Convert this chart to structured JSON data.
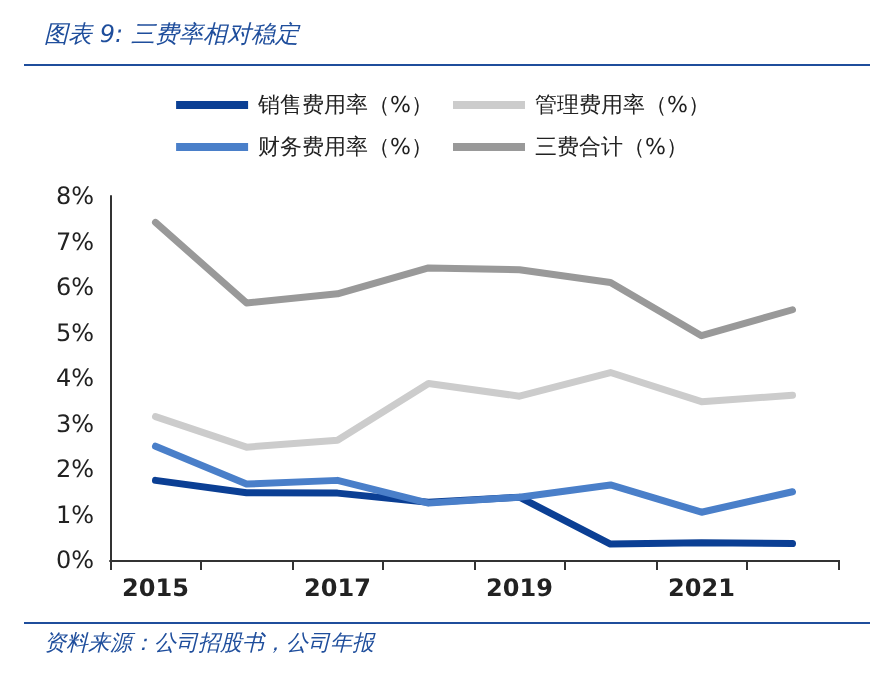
{
  "chart_data": {
    "type": "line",
    "title": "图表 9:  三费率相对稳定",
    "annotations": [
      "资料来源：公司招股书，公司年报"
    ],
    "categories": [
      "2015",
      null,
      "2017",
      null,
      "2019",
      null,
      "2021",
      null
    ],
    "series": [
      {
        "name": "销售费用率（%）",
        "color": "#0b3f94",
        "values": [
          1.75,
          1.48,
          1.47,
          1.27,
          1.38,
          0.35,
          0.38,
          0.36
        ]
      },
      {
        "name": "管理费用率（%）",
        "color": "#cccccc",
        "values": [
          3.15,
          2.48,
          2.63,
          3.88,
          3.6,
          4.12,
          3.48,
          3.62
        ]
      },
      {
        "name": "财务费用率（%）",
        "color": "#4a7fc9",
        "values": [
          2.5,
          1.67,
          1.75,
          1.25,
          1.38,
          1.65,
          1.05,
          1.5
        ]
      },
      {
        "name": "三费合计（%）",
        "color": "#999999",
        "values": [
          7.42,
          5.65,
          5.85,
          6.42,
          6.38,
          6.1,
          4.93,
          5.5
        ]
      }
    ],
    "ylim": [
      0,
      8
    ],
    "yticks": [
      {
        "value": 0,
        "label": "0%"
      },
      {
        "value": 1,
        "label": "1%"
      },
      {
        "value": 2,
        "label": "2%"
      },
      {
        "value": 3,
        "label": "3%"
      },
      {
        "value": 4,
        "label": "4%"
      },
      {
        "value": 5,
        "label": "5%"
      },
      {
        "value": 6,
        "label": "6%"
      },
      {
        "value": 7,
        "label": "7%"
      },
      {
        "value": 8,
        "label": "8%"
      }
    ],
    "grid": false,
    "legend": "top",
    "marker": "none",
    "line_style": "solid"
  }
}
